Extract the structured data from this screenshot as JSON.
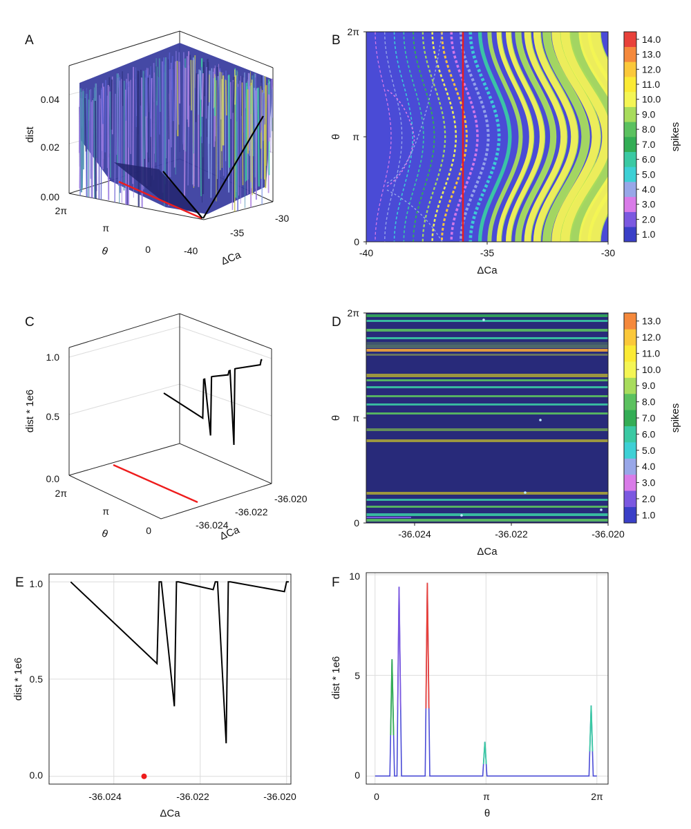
{
  "colors": {
    "spike_colormap": [
      "#3a3fc7",
      "#7b58e0",
      "#d97be8",
      "#98a7e8",
      "#3dd0d5",
      "#3ac9a3",
      "#33ad55",
      "#5bc15f",
      "#a8dc5c",
      "#f4f554",
      "#fbea35",
      "#fbc83a",
      "#f5893c",
      "#e8413a"
    ],
    "panelD_background": "#282a7a",
    "red": "#ee1c1c",
    "black": "#000000"
  },
  "panels": {
    "A": {
      "label": "A",
      "zlabel": "dist",
      "xlabel": "ΔCa",
      "ylabel": "θ",
      "zticks": [
        "0.00",
        "0.02",
        "0.04"
      ],
      "xticks": [
        "-40",
        "-35",
        "-30"
      ],
      "yticks": [
        "0",
        "π",
        "2π"
      ]
    },
    "B": {
      "label": "B",
      "xlabel": "ΔCa",
      "ylabel": "θ",
      "colorbar_label": "spikes",
      "xticks": [
        "-40",
        "-35",
        "-30"
      ],
      "yticks": [
        "0",
        "π",
        "2π"
      ],
      "colorbar_ticks": [
        "1.0",
        "2.0",
        "3.0",
        "4.0",
        "5.0",
        "6.0",
        "7.0",
        "8.0",
        "9.0",
        "10.0",
        "11.0",
        "12.0",
        "13.0",
        "14.0"
      ]
    },
    "C": {
      "label": "C",
      "zlabel": "dist * 1e6",
      "xlabel": "ΔCa",
      "ylabel": "θ",
      "zticks": [
        "0.0",
        "0.5",
        "1.0"
      ],
      "xticks": [
        "-36.024",
        "-36.022",
        "-36.020"
      ],
      "yticks": [
        "0",
        "π",
        "2π"
      ]
    },
    "D": {
      "label": "D",
      "xlabel": "ΔCa",
      "ylabel": "θ",
      "colorbar_label": "spikes",
      "xticks": [
        "-36.024",
        "-36.022",
        "-36.020"
      ],
      "yticks": [
        "0",
        "π",
        "2π"
      ],
      "colorbar_ticks": [
        "1.0",
        "2.0",
        "3.0",
        "4.0",
        "5.0",
        "6.0",
        "7.0",
        "8.0",
        "9.0",
        "10.0",
        "11.0",
        "12.0",
        "13.0"
      ]
    },
    "E": {
      "label": "E",
      "xlabel": "ΔCa",
      "ylabel": "dist * 1e6",
      "xticks": [
        "-36.024",
        "-36.022",
        "-36.020"
      ],
      "yticks": [
        "0.0",
        "0.5",
        "1.0"
      ]
    },
    "F": {
      "label": "F",
      "xlabel": "θ",
      "ylabel": "dist * 1e6",
      "xticks": [
        "0",
        "π",
        "2π"
      ],
      "yticks": [
        "0",
        "5",
        "10"
      ]
    }
  },
  "chart_data": [
    {
      "panel": "A",
      "type": "surface3d",
      "x_range": [
        -40,
        -30
      ],
      "y_range": [
        0,
        6.283
      ],
      "z_range": [
        0,
        0.05
      ],
      "red_line_x": -36.0
    },
    {
      "panel": "B",
      "type": "heatmap",
      "x_range": [
        -40,
        -30
      ],
      "y_range": [
        0,
        6.283
      ],
      "color_range": [
        1,
        14
      ],
      "red_line_x": -36.0
    },
    {
      "panel": "C",
      "type": "line3d",
      "x_range": [
        -36.025,
        -36.02
      ],
      "y_range": [
        0,
        6.283
      ],
      "z_range": [
        0,
        1.0
      ],
      "x": [
        -36.025,
        -36.023,
        -36.02295,
        -36.0229,
        -36.0226,
        -36.02255,
        -36.0225,
        -36.0217,
        -36.02165,
        -36.0216,
        -36.0214,
        -36.02135,
        -36.0213,
        -36.02005,
        -36.02,
        -36.01995
      ],
      "y": [
        1.0,
        0.58,
        1.0,
        1.0,
        0.36,
        1.0,
        1.0,
        0.96,
        1.0,
        1.0,
        0.17,
        1.0,
        1.0,
        0.95,
        1.0,
        1.0
      ]
    },
    {
      "panel": "D",
      "type": "heatmap",
      "x_range": [
        -36.025,
        -36.02
      ],
      "y_range": [
        0,
        6.283
      ],
      "color_range": [
        1,
        13
      ]
    },
    {
      "panel": "E",
      "type": "line",
      "x_range": [
        -36.0255,
        -36.0199
      ],
      "y_range": [
        -0.04,
        1.04
      ],
      "x": [
        -36.025,
        -36.023,
        -36.02295,
        -36.0229,
        -36.0226,
        -36.02255,
        -36.0225,
        -36.0217,
        -36.02165,
        -36.0216,
        -36.0214,
        -36.02135,
        -36.0213,
        -36.02005,
        -36.02,
        -36.01995
      ],
      "y": [
        1.0,
        0.58,
        1.0,
        1.0,
        0.36,
        1.0,
        1.0,
        0.96,
        1.0,
        1.0,
        0.17,
        1.0,
        1.0,
        0.95,
        1.0,
        1.0
      ],
      "red_point": {
        "x": -36.0233,
        "y": 0.0
      }
    },
    {
      "panel": "F",
      "type": "line",
      "x_range": [
        -0.25,
        6.6
      ],
      "y_range": [
        -0.4,
        10.1
      ],
      "x": [
        0,
        0.42,
        0.48,
        0.55,
        0.62,
        0.68,
        0.75,
        1.42,
        1.48,
        1.55,
        3.05,
        3.11,
        3.17,
        6.06,
        6.12,
        6.18,
        6.283
      ],
      "y": [
        0,
        0,
        5.8,
        0,
        0,
        9.4,
        0,
        0,
        9.6,
        0,
        0,
        1.7,
        0,
        0,
        3.5,
        0,
        0
      ],
      "peak_colors": [
        "#33ad55",
        "#7b58e0",
        "#e8413a",
        "#3ac9a3",
        "#3ac9a3"
      ]
    }
  ]
}
